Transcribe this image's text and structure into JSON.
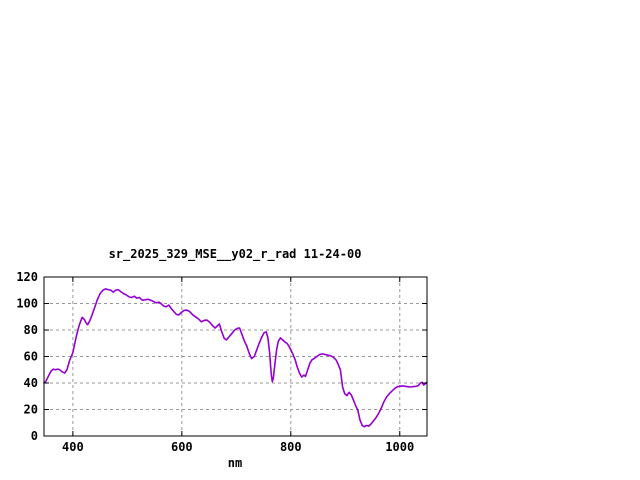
{
  "window": {
    "background_color": "#ffffff"
  },
  "chart_data": {
    "type": "line",
    "title": "sr_2025_329_MSE__y02_r_rad 11-24-00",
    "xlabel": "nm",
    "ylabel": "",
    "xlim": [
      347,
      1050
    ],
    "ylim": [
      0,
      120
    ],
    "x_ticks": [
      400,
      600,
      800,
      1000
    ],
    "y_ticks": [
      0,
      20,
      40,
      60,
      80,
      100,
      120
    ],
    "grid": true,
    "legend_position": "none",
    "colors": {
      "line": "#9400d3",
      "grid": "#999999",
      "axis": "#000000",
      "text": "#000000",
      "background": "#ffffff"
    },
    "series": [
      {
        "name": "sr_2025_329_MSE__y02_r_rad",
        "points": [
          [
            347,
            40
          ],
          [
            350,
            41
          ],
          [
            353,
            43.5
          ],
          [
            356,
            46
          ],
          [
            360,
            49
          ],
          [
            364,
            50.5
          ],
          [
            368,
            50
          ],
          [
            372,
            50.5
          ],
          [
            376,
            50
          ],
          [
            380,
            48.5
          ],
          [
            385,
            47.5
          ],
          [
            389,
            50
          ],
          [
            394,
            57
          ],
          [
            400,
            63
          ],
          [
            404,
            71
          ],
          [
            408,
            78
          ],
          [
            412,
            84
          ],
          [
            417,
            89.5
          ],
          [
            421,
            88
          ],
          [
            424,
            85.5
          ],
          [
            427,
            84
          ],
          [
            431,
            87
          ],
          [
            435,
            91
          ],
          [
            440,
            97
          ],
          [
            445,
            103
          ],
          [
            450,
            107.5
          ],
          [
            455,
            110
          ],
          [
            460,
            111
          ],
          [
            465,
            110.5
          ],
          [
            470,
            110
          ],
          [
            474,
            108.5
          ],
          [
            478,
            110
          ],
          [
            483,
            110.5
          ],
          [
            488,
            109
          ],
          [
            493,
            107.5
          ],
          [
            498,
            106.5
          ],
          [
            503,
            105
          ],
          [
            508,
            104.5
          ],
          [
            513,
            105.5
          ],
          [
            517,
            104
          ],
          [
            522,
            104.5
          ],
          [
            528,
            102.5
          ],
          [
            533,
            102.8
          ],
          [
            538,
            103.2
          ],
          [
            543,
            102.5
          ],
          [
            548,
            101.5
          ],
          [
            553,
            100.5
          ],
          [
            558,
            101
          ],
          [
            563,
            99.5
          ],
          [
            567,
            98
          ],
          [
            571,
            97.5
          ],
          [
            576,
            98.8
          ],
          [
            580,
            96.5
          ],
          [
            585,
            94
          ],
          [
            590,
            91.8
          ],
          [
            594,
            91.3
          ],
          [
            600,
            93.5
          ],
          [
            604,
            94.8
          ],
          [
            609,
            95
          ],
          [
            614,
            94
          ],
          [
            620,
            91.5
          ],
          [
            625,
            90
          ],
          [
            630,
            88.5
          ],
          [
            636,
            86.2
          ],
          [
            641,
            87.3
          ],
          [
            646,
            87.5
          ],
          [
            651,
            86
          ],
          [
            656,
            83.5
          ],
          [
            661,
            81.5
          ],
          [
            666,
            83.5
          ],
          [
            669,
            84.5
          ],
          [
            673,
            79
          ],
          [
            678,
            73.5
          ],
          [
            682,
            72.5
          ],
          [
            687,
            75
          ],
          [
            692,
            77.5
          ],
          [
            697,
            80
          ],
          [
            702,
            81.3
          ],
          [
            706,
            81.5
          ],
          [
            710,
            77
          ],
          [
            715,
            71.5
          ],
          [
            719,
            68
          ],
          [
            724,
            62
          ],
          [
            728,
            58.5
          ],
          [
            733,
            60
          ],
          [
            737,
            64.5
          ],
          [
            741,
            69
          ],
          [
            746,
            74
          ],
          [
            751,
            78
          ],
          [
            755,
            78.5
          ],
          [
            758,
            74
          ],
          [
            761,
            63
          ],
          [
            764,
            47
          ],
          [
            766,
            41
          ],
          [
            768,
            44
          ],
          [
            771,
            55
          ],
          [
            774,
            65
          ],
          [
            777,
            71.5
          ],
          [
            781,
            74
          ],
          [
            785,
            72.5
          ],
          [
            789,
            71
          ],
          [
            793,
            70
          ],
          [
            797,
            67.5
          ],
          [
            800,
            65
          ],
          [
            804,
            61.5
          ],
          [
            808,
            57.5
          ],
          [
            812,
            52
          ],
          [
            816,
            47.5
          ],
          [
            820,
            44.5
          ],
          [
            824,
            46
          ],
          [
            827,
            45
          ],
          [
            831,
            50
          ],
          [
            835,
            55
          ],
          [
            839,
            57.5
          ],
          [
            843,
            58.5
          ],
          [
            848,
            60
          ],
          [
            853,
            61.5
          ],
          [
            858,
            62
          ],
          [
            863,
            61.5
          ],
          [
            868,
            61
          ],
          [
            873,
            60.5
          ],
          [
            878,
            59.5
          ],
          [
            883,
            57.5
          ],
          [
            887,
            54
          ],
          [
            891,
            50
          ],
          [
            895,
            37
          ],
          [
            899,
            32
          ],
          [
            903,
            30.5
          ],
          [
            907,
            33
          ],
          [
            911,
            31
          ],
          [
            915,
            27
          ],
          [
            919,
            23
          ],
          [
            923,
            19.5
          ],
          [
            927,
            12
          ],
          [
            931,
            8
          ],
          [
            935,
            7
          ],
          [
            939,
            8
          ],
          [
            943,
            7.5
          ],
          [
            947,
            9
          ],
          [
            951,
            11
          ],
          [
            955,
            13
          ],
          [
            959,
            15.5
          ],
          [
            963,
            18.5
          ],
          [
            967,
            22
          ],
          [
            971,
            26
          ],
          [
            976,
            29.5
          ],
          [
            981,
            32
          ],
          [
            986,
            34
          ],
          [
            991,
            36
          ],
          [
            996,
            37.3
          ],
          [
            1000,
            37.5
          ],
          [
            1005,
            37.8
          ],
          [
            1010,
            37.5
          ],
          [
            1015,
            37.2
          ],
          [
            1020,
            37
          ],
          [
            1025,
            37.3
          ],
          [
            1030,
            37.5
          ],
          [
            1034,
            38
          ],
          [
            1038,
            40
          ],
          [
            1041,
            40.5
          ],
          [
            1044,
            38.5
          ],
          [
            1047,
            39.5
          ],
          [
            1050,
            40.5
          ]
        ]
      }
    ]
  }
}
